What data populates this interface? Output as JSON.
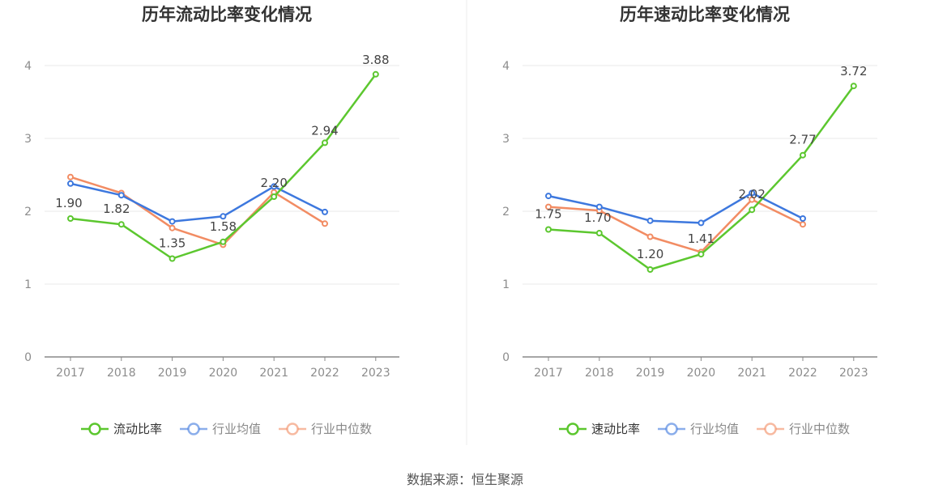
{
  "source_text": "数据来源：恒生聚源",
  "colors": {
    "company": "#5cc72f",
    "avg": "#3d78de",
    "median": "#f28c63",
    "grid": "#e8e8e8",
    "axis": "#888888",
    "legend_text_active": "#333333",
    "legend_text_muted": "#888888",
    "divider": "#eeeeee"
  },
  "chart_data": [
    {
      "type": "line",
      "title": "历年流动比率变化情况",
      "categories": [
        "2017",
        "2018",
        "2019",
        "2020",
        "2021",
        "2022",
        "2023"
      ],
      "ylim": [
        0,
        4
      ],
      "yticks": [
        0,
        1,
        2,
        3,
        4
      ],
      "grid": true,
      "legend_position": "bottom",
      "series": [
        {
          "name": "流动比率",
          "key": "company",
          "values": [
            1.9,
            1.82,
            1.35,
            1.58,
            2.2,
            2.94,
            3.88
          ],
          "labels": [
            "1.90",
            "1.82",
            "1.35",
            "1.58",
            "2.20",
            "2.94",
            "3.88"
          ]
        },
        {
          "name": "行业均值",
          "key": "avg",
          "values": [
            2.38,
            2.22,
            1.86,
            1.93,
            2.34,
            1.99,
            null
          ]
        },
        {
          "name": "行业中位数",
          "key": "median",
          "values": [
            2.47,
            2.25,
            1.77,
            1.54,
            2.26,
            1.83,
            null
          ]
        }
      ]
    },
    {
      "type": "line",
      "title": "历年速动比率变化情况",
      "categories": [
        "2017",
        "2018",
        "2019",
        "2020",
        "2021",
        "2022",
        "2023"
      ],
      "ylim": [
        0,
        4
      ],
      "yticks": [
        0,
        1,
        2,
        3,
        4
      ],
      "grid": true,
      "legend_position": "bottom",
      "series": [
        {
          "name": "速动比率",
          "key": "company",
          "values": [
            1.75,
            1.7,
            1.2,
            1.41,
            2.02,
            2.77,
            3.72
          ],
          "labels": [
            "1.75",
            "1.70",
            "1.20",
            "1.41",
            "2.02",
            "2.77",
            "3.72"
          ]
        },
        {
          "name": "行业均值",
          "key": "avg",
          "values": [
            2.21,
            2.06,
            1.87,
            1.84,
            2.25,
            1.9,
            null
          ]
        },
        {
          "name": "行业中位数",
          "key": "median",
          "values": [
            2.06,
            2.01,
            1.65,
            1.44,
            2.16,
            1.82,
            null
          ]
        }
      ]
    }
  ]
}
